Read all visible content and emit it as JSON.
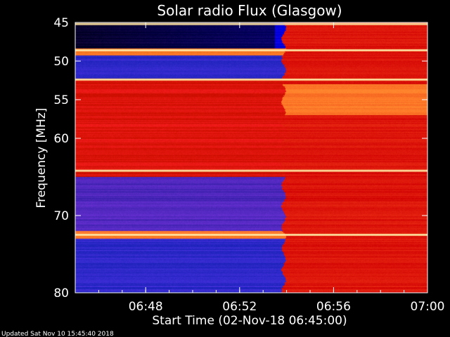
{
  "chart_data": {
    "type": "heatmap",
    "title": "Solar radio Flux (Glasgow)",
    "xlabel": "Start Time (02-Nov-18 06:45:00)",
    "ylabel": "Frequency [MHz]",
    "xlim": [
      "06:45:00",
      "07:00:00"
    ],
    "ylim": [
      45,
      80
    ],
    "y_inverted": true,
    "x_tick_labels": [
      "06:48",
      "06:52",
      "06:56",
      "07:00"
    ],
    "x_ticks_minutes_after_start": [
      3,
      7,
      11,
      15
    ],
    "y_tick_labels": [
      "45",
      "50",
      "55",
      "60",
      "70",
      "80"
    ],
    "y_ticks_mhz": [
      45,
      50,
      55,
      60,
      70,
      80
    ],
    "transition_time": "06:53:50",
    "colormap": [
      "#000000",
      "#0a0a8c",
      "#2323ff",
      "#4d3cc8",
      "#7a1478",
      "#8c0000",
      "#c80000",
      "#ff1e00",
      "#ff6e1e",
      "#ffaa50",
      "#ffdc82",
      "#ffffc8"
    ],
    "interference_lines_mhz": [
      45.2,
      48.6,
      52.4,
      64.2,
      72.5
    ],
    "band_levels_before": [
      {
        "from_mhz": 45,
        "to_mhz": 48.3,
        "level": "low"
      },
      {
        "from_mhz": 48.3,
        "to_mhz": 49.2,
        "level": "high"
      },
      {
        "from_mhz": 49.2,
        "to_mhz": 52.2,
        "level": "low"
      },
      {
        "from_mhz": 52.2,
        "to_mhz": 65,
        "level": "medium-high"
      },
      {
        "from_mhz": 65,
        "to_mhz": 72,
        "level": "medium-low"
      },
      {
        "from_mhz": 72,
        "to_mhz": 73,
        "level": "high"
      },
      {
        "from_mhz": 73,
        "to_mhz": 80,
        "level": "low"
      }
    ],
    "band_levels_after": [
      {
        "from_mhz": 45,
        "to_mhz": 53,
        "level": "medium-high"
      },
      {
        "from_mhz": 53,
        "to_mhz": 57,
        "level": "high"
      },
      {
        "from_mhz": 57,
        "to_mhz": 80,
        "level": "medium-high"
      }
    ]
  },
  "footer": {
    "updated": "Updated Sat Nov 10 15:45:40 2018"
  }
}
